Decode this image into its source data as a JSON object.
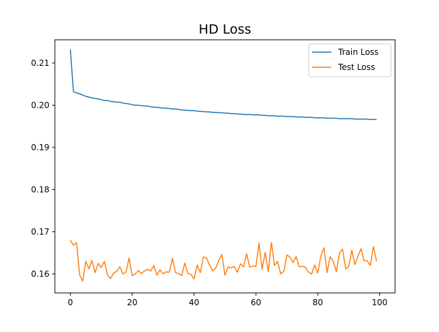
{
  "chart_data": {
    "type": "line",
    "title": "HD Loss",
    "xlabel": "",
    "ylabel": "",
    "xlim": [
      -5,
      105
    ],
    "ylim": [
      0.1555,
      0.2155
    ],
    "xticks": [
      0,
      20,
      40,
      60,
      80,
      100
    ],
    "yticks": [
      0.16,
      0.17,
      0.18,
      0.19,
      0.2,
      0.21
    ],
    "ytick_labels": [
      "0.16",
      "0.17",
      "0.18",
      "0.19",
      "0.20",
      "0.21"
    ],
    "grid": false,
    "legend_position": "top-right",
    "x": [
      0,
      1,
      2,
      3,
      4,
      5,
      6,
      7,
      8,
      9,
      10,
      11,
      12,
      13,
      14,
      15,
      16,
      17,
      18,
      19,
      20,
      21,
      22,
      23,
      24,
      25,
      26,
      27,
      28,
      29,
      30,
      31,
      32,
      33,
      34,
      35,
      36,
      37,
      38,
      39,
      40,
      41,
      42,
      43,
      44,
      45,
      46,
      47,
      48,
      49,
      50,
      51,
      52,
      53,
      54,
      55,
      56,
      57,
      58,
      59,
      60,
      61,
      62,
      63,
      64,
      65,
      66,
      67,
      68,
      69,
      70,
      71,
      72,
      73,
      74,
      75,
      76,
      77,
      78,
      79,
      80,
      81,
      82,
      83,
      84,
      85,
      86,
      87,
      88,
      89,
      90,
      91,
      92,
      93,
      94,
      95,
      96,
      97,
      98,
      99
    ],
    "series": [
      {
        "name": "Train Loss",
        "color": "#1f77b4",
        "values": [
          0.2132,
          0.2032,
          0.2029,
          0.2027,
          0.2024,
          0.2021,
          0.2019,
          0.2017,
          0.2016,
          0.2015,
          0.2013,
          0.2011,
          0.2011,
          0.2009,
          0.2008,
          0.2007,
          0.2007,
          0.2005,
          0.2004,
          0.2003,
          0.2001,
          0.2,
          0.2,
          0.1999,
          0.1998,
          0.1998,
          0.1996,
          0.1995,
          0.1995,
          0.1994,
          0.1993,
          0.1993,
          0.1992,
          0.1991,
          0.1991,
          0.199,
          0.1989,
          0.1988,
          0.1988,
          0.1987,
          0.1987,
          0.1986,
          0.1985,
          0.1985,
          0.1984,
          0.1984,
          0.1983,
          0.1983,
          0.1982,
          0.1982,
          0.1981,
          0.1981,
          0.198,
          0.198,
          0.1979,
          0.1979,
          0.1978,
          0.1978,
          0.1978,
          0.1977,
          0.1977,
          0.1977,
          0.1976,
          0.1976,
          0.1975,
          0.1975,
          0.1975,
          0.1974,
          0.1974,
          0.1974,
          0.1973,
          0.1973,
          0.1973,
          0.1972,
          0.1972,
          0.1972,
          0.1971,
          0.1971,
          0.1971,
          0.197,
          0.197,
          0.197,
          0.197,
          0.1969,
          0.1969,
          0.1969,
          0.1969,
          0.1968,
          0.1968,
          0.1968,
          0.1968,
          0.1968,
          0.1967,
          0.1967,
          0.1967,
          0.1967,
          0.1967,
          0.1966,
          0.1966,
          0.1966
        ]
      },
      {
        "name": "Test Loss",
        "color": "#ff7f0e",
        "values": [
          0.168,
          0.1668,
          0.1674,
          0.1598,
          0.1583,
          0.163,
          0.1612,
          0.1632,
          0.1603,
          0.1625,
          0.1615,
          0.163,
          0.1597,
          0.1589,
          0.1602,
          0.1606,
          0.1617,
          0.16,
          0.1604,
          0.1638,
          0.1596,
          0.16,
          0.1608,
          0.1601,
          0.1607,
          0.1611,
          0.1607,
          0.162,
          0.1597,
          0.161,
          0.16,
          0.1605,
          0.1604,
          0.1637,
          0.1603,
          0.1601,
          0.1596,
          0.1626,
          0.1601,
          0.1599,
          0.1588,
          0.1621,
          0.1603,
          0.164,
          0.1638,
          0.1621,
          0.1607,
          0.1614,
          0.1632,
          0.1646,
          0.1597,
          0.1617,
          0.1614,
          0.1618,
          0.1604,
          0.1624,
          0.1617,
          0.1648,
          0.1616,
          0.1619,
          0.1618,
          0.1673,
          0.1611,
          0.1651,
          0.1605,
          0.1675,
          0.162,
          0.163,
          0.16,
          0.1606,
          0.1645,
          0.164,
          0.1627,
          0.1641,
          0.1617,
          0.1618,
          0.1616,
          0.1604,
          0.16,
          0.1621,
          0.1602,
          0.1643,
          0.1662,
          0.1603,
          0.1641,
          0.163,
          0.1605,
          0.1649,
          0.1659,
          0.1612,
          0.1617,
          0.1656,
          0.1622,
          0.1642,
          0.166,
          0.1631,
          0.1631,
          0.162,
          0.1665,
          0.163
        ]
      }
    ]
  }
}
